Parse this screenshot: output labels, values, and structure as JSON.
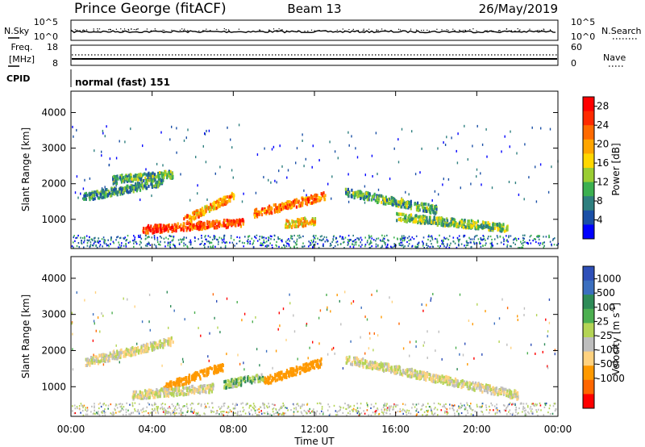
{
  "header": {
    "station": "Prince George (fitACF)",
    "beam": "Beam 13",
    "date": "26/May/2019"
  },
  "scan_panel": {
    "left_label": "N.Sky",
    "right_label": "N.Search",
    "left_ticks": [
      "10^5",
      "10^0"
    ],
    "right_ticks": [
      "10^5",
      "10^0"
    ]
  },
  "freq_panel": {
    "left_label_1": "Freq.",
    "left_label_2": "[MHz]",
    "right_label": "Nave",
    "left_ticks": [
      "18",
      "8"
    ],
    "right_ticks": [
      "60",
      "0"
    ]
  },
  "cpid_panel": {
    "label": "CPID",
    "text": "normal (fast) 151"
  },
  "chart_data": [
    {
      "type": "heatmap",
      "title": "",
      "xlabel": "Time UT",
      "ylabel": "Slant Range [km]",
      "x_range_hours": [
        0,
        24
      ],
      "xticks": [
        "00:00",
        "04:00",
        "08:00",
        "12:00",
        "16:00",
        "20:00",
        "00:00"
      ],
      "ylim": [
        180,
        4600
      ],
      "yticks": [
        1000,
        2000,
        3000,
        4000
      ],
      "colorbar": {
        "label": "Power [dB]",
        "ticks": [
          4,
          8,
          12,
          16,
          20,
          24,
          28
        ],
        "range": [
          0,
          30
        ],
        "colors": [
          "#0000ff",
          "#1a4fa6",
          "#2e7f7f",
          "#3cb050",
          "#9acd32",
          "#ffd700",
          "#ffa500",
          "#ff6a00",
          "#ff2a00",
          "#ff0000"
        ]
      },
      "echo_bands": [
        {
          "t_start": 0.6,
          "t_end": 4.5,
          "range_start_km": 1650,
          "range_end_km": 2100,
          "power_db": 9
        },
        {
          "t_start": 2.0,
          "t_end": 5.0,
          "range_start_km": 2150,
          "range_end_km": 2300,
          "power_db": 10
        },
        {
          "t_start": 3.5,
          "t_end": 8.5,
          "range_start_km": 750,
          "range_end_km": 950,
          "power_db": 25
        },
        {
          "t_start": 5.5,
          "t_end": 8.0,
          "range_start_km": 1000,
          "range_end_km": 1700,
          "power_db": 20
        },
        {
          "t_start": 9.0,
          "t_end": 12.5,
          "range_start_km": 1200,
          "range_end_km": 1700,
          "power_db": 22
        },
        {
          "t_start": 10.5,
          "t_end": 12.0,
          "range_start_km": 900,
          "range_end_km": 1000,
          "power_db": 18
        },
        {
          "t_start": 13.5,
          "t_end": 18.0,
          "range_start_km": 1800,
          "range_end_km": 1300,
          "power_db": 10
        },
        {
          "t_start": 16.0,
          "t_end": 21.5,
          "range_start_km": 1100,
          "range_end_km": 800,
          "power_db": 12
        }
      ]
    },
    {
      "type": "heatmap",
      "title": "",
      "xlabel": "Time UT",
      "ylabel": "Slant Range [km]",
      "x_range_hours": [
        0,
        24
      ],
      "xticks": [
        "00:00",
        "04:00",
        "08:00",
        "12:00",
        "16:00",
        "20:00",
        "00:00"
      ],
      "ylim": [
        180,
        4600
      ],
      "yticks": [
        1000,
        2000,
        3000,
        4000
      ],
      "colorbar": {
        "label": "Velocity [m s^-1]",
        "ticks": [
          1000,
          500,
          100,
          25,
          -25,
          -100,
          -500,
          -1000
        ],
        "colors": [
          "#2e4fb8",
          "#3b6fbf",
          "#2e8b57",
          "#4caf50",
          "#b4d455",
          "#bebebe",
          "#ffd27f",
          "#ff9900",
          "#ff6600",
          "#ff0000"
        ]
      },
      "echo_bands": [
        {
          "t_start": 0.6,
          "t_end": 5.0,
          "range_start_km": 1700,
          "range_end_km": 2300,
          "velocity_ms": 0
        },
        {
          "t_start": 4.5,
          "t_end": 7.5,
          "range_start_km": 1000,
          "range_end_km": 1600,
          "velocity_ms": -300
        },
        {
          "t_start": 7.5,
          "t_end": 9.5,
          "range_start_km": 1100,
          "range_end_km": 1300,
          "velocity_ms": 80
        },
        {
          "t_start": 9.5,
          "t_end": 12.3,
          "range_start_km": 1200,
          "range_end_km": 1700,
          "velocity_ms": -250
        },
        {
          "t_start": 3.0,
          "t_end": 7.0,
          "range_start_km": 800,
          "range_end_km": 1000,
          "velocity_ms": 0
        },
        {
          "t_start": 13.5,
          "t_end": 22.0,
          "range_start_km": 1800,
          "range_end_km": 800,
          "velocity_ms": 0
        }
      ]
    }
  ]
}
